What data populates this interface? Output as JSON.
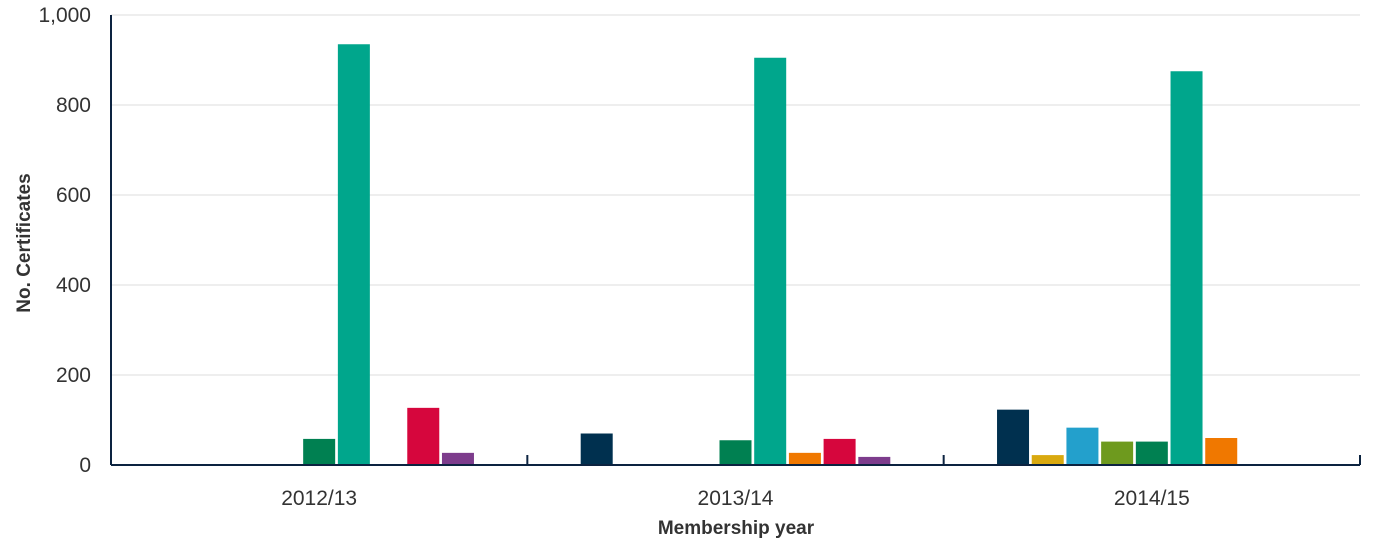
{
  "chart_data": {
    "type": "bar",
    "xlabel": "Membership year",
    "ylabel": "No. Certificates",
    "ylim": [
      0,
      1000
    ],
    "yticks": [
      0,
      200,
      400,
      600,
      800,
      1000
    ],
    "ytick_labels": [
      "0",
      "200",
      "400",
      "600",
      "800",
      "1,000"
    ],
    "grid": true,
    "categories": [
      "2012/13",
      "2013/14",
      "2014/15"
    ],
    "series": [
      {
        "color": "#00304f",
        "values": [
          0,
          70,
          123
        ]
      },
      {
        "color": "#d9a90f",
        "values": [
          0,
          0,
          22
        ]
      },
      {
        "color": "#23a0cc",
        "values": [
          0,
          0,
          83
        ]
      },
      {
        "color": "#6e9a1e",
        "values": [
          0,
          0,
          52
        ]
      },
      {
        "color": "#008051",
        "values": [
          58,
          55,
          52
        ]
      },
      {
        "color": "#00a68c",
        "values": [
          935,
          905,
          875
        ]
      },
      {
        "color": "#f07800",
        "values": [
          0,
          27,
          60
        ]
      },
      {
        "color": "#d6063d",
        "values": [
          127,
          58,
          0
        ]
      },
      {
        "color": "#7d3c8c",
        "values": [
          27,
          18,
          0
        ]
      }
    ]
  }
}
